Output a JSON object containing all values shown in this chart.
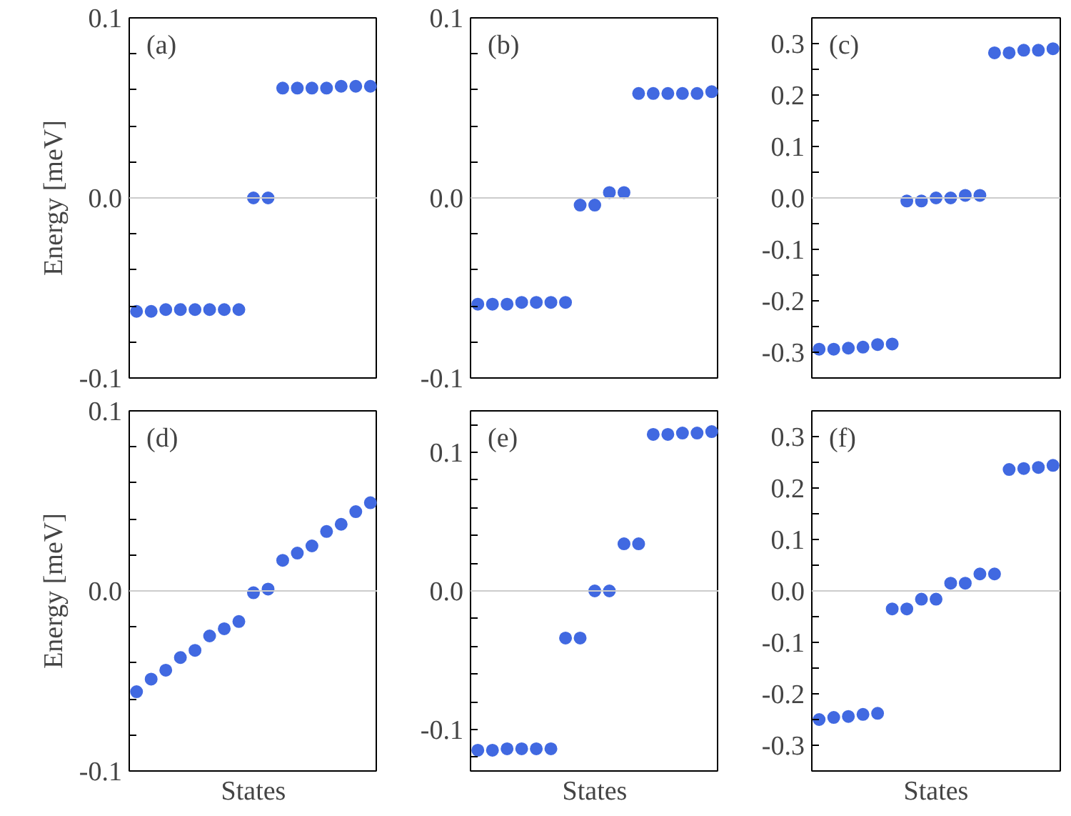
{
  "chart_data": [
    {
      "type": "scatter",
      "ylabel": "Energy [meV]",
      "annotations": [
        "(a)"
      ],
      "categories": [
        null,
        null,
        null,
        null,
        null,
        null,
        null,
        null,
        null,
        null,
        null,
        null,
        null,
        null,
        null,
        null,
        null
      ],
      "color": "#4169e1",
      "marker": "circle",
      "tick_labels": "y",
      "values": [
        -0.063,
        -0.063,
        -0.062,
        -0.062,
        -0.062,
        -0.062,
        -0.062,
        -0.062,
        0.0,
        0.0,
        0.061,
        0.061,
        0.061,
        0.061,
        0.062,
        0.062,
        0.062
      ],
      "ylim": [
        -0.1,
        0.1
      ],
      "yticks": [
        -0.1,
        {
          "value": -0.08,
          "label": null
        },
        {
          "value": -0.06,
          "label": null
        },
        {
          "value": -0.04,
          "label": null
        },
        {
          "value": -0.02,
          "label": null
        },
        {
          "value": 0,
          "label": "0.0"
        },
        {
          "value": 0.02,
          "label": null
        },
        {
          "value": 0.04,
          "label": null
        },
        {
          "value": 0.06,
          "label": null
        },
        {
          "value": 0.08,
          "label": null
        },
        0.1
      ],
      "ref_lines": [
        {
          "axis": "y",
          "value": 0,
          "color": "#cccccc"
        }
      ]
    },
    {
      "type": "scatter",
      "annotations": [
        "(b)"
      ],
      "categories": [
        null,
        null,
        null,
        null,
        null,
        null,
        null,
        null,
        null,
        null,
        null,
        null,
        null,
        null,
        null,
        null,
        null
      ],
      "color": "#4169e1",
      "marker": "circle",
      "tick_labels": "y",
      "values": [
        -0.059,
        -0.059,
        -0.059,
        -0.058,
        -0.058,
        -0.058,
        -0.058,
        -0.004,
        -0.004,
        0.003,
        0.003,
        0.058,
        0.058,
        0.058,
        0.058,
        0.058,
        0.059
      ],
      "ylim": [
        -0.1,
        0.1
      ],
      "yticks": [
        -0.1,
        {
          "value": -0.08,
          "label": null
        },
        {
          "value": -0.06,
          "label": null
        },
        {
          "value": -0.04,
          "label": null
        },
        {
          "value": -0.02,
          "label": null
        },
        {
          "value": 0,
          "label": "0.0"
        },
        {
          "value": 0.02,
          "label": null
        },
        {
          "value": 0.04,
          "label": null
        },
        {
          "value": 0.06,
          "label": null
        },
        {
          "value": 0.08,
          "label": null
        },
        0.1
      ],
      "ref_lines": [
        {
          "axis": "y",
          "value": 0,
          "color": "#cccccc"
        }
      ]
    },
    {
      "type": "scatter",
      "annotations": [
        "(c)"
      ],
      "categories": [
        null,
        null,
        null,
        null,
        null,
        null,
        null,
        null,
        null,
        null,
        null,
        null,
        null,
        null,
        null,
        null,
        null
      ],
      "color": "#4169e1",
      "marker": "circle",
      "tick_labels": "y",
      "values": [
        -0.294,
        -0.294,
        -0.292,
        -0.29,
        -0.285,
        -0.284,
        -0.006,
        -0.006,
        0.0,
        0.0,
        0.005,
        0.005,
        0.282,
        0.282,
        0.287,
        0.287,
        0.29
      ],
      "ylim": [
        -0.35,
        0.35
      ],
      "yticks": [
        -0.3,
        {
          "value": -0.25,
          "label": null
        },
        -0.2,
        {
          "value": -0.15,
          "label": null
        },
        -0.1,
        {
          "value": -0.05,
          "label": null
        },
        {
          "value": 0,
          "label": "0.0"
        },
        {
          "value": 0.05,
          "label": null
        },
        0.1,
        {
          "value": 0.15,
          "label": null
        },
        0.2,
        {
          "value": 0.25,
          "label": null
        },
        0.3
      ],
      "ref_lines": [
        {
          "axis": "y",
          "value": 0,
          "color": "#cccccc"
        }
      ]
    },
    {
      "type": "scatter",
      "ylabel": "Energy [meV]",
      "xlabel": "States",
      "annotations": [
        "(d)"
      ],
      "categories": [
        null,
        null,
        null,
        null,
        null,
        null,
        null,
        null,
        null,
        null,
        null,
        null,
        null,
        null,
        null,
        null,
        null
      ],
      "color": "#4169e1",
      "marker": "circle",
      "tick_labels": "y",
      "values": [
        -0.056,
        -0.049,
        -0.044,
        -0.037,
        -0.033,
        -0.025,
        -0.021,
        -0.017,
        -0.001,
        0.001,
        0.017,
        0.021,
        0.025,
        0.033,
        0.037,
        0.044,
        0.049
      ],
      "ylim": [
        -0.1,
        0.1
      ],
      "yticks": [
        -0.1,
        {
          "value": -0.08,
          "label": null
        },
        {
          "value": -0.06,
          "label": null
        },
        {
          "value": -0.04,
          "label": null
        },
        {
          "value": -0.02,
          "label": null
        },
        {
          "value": 0,
          "label": "0.0"
        },
        {
          "value": 0.02,
          "label": null
        },
        {
          "value": 0.04,
          "label": null
        },
        {
          "value": 0.06,
          "label": null
        },
        {
          "value": 0.08,
          "label": null
        },
        0.1
      ],
      "ref_lines": [
        {
          "axis": "y",
          "value": 0,
          "color": "#cccccc"
        }
      ]
    },
    {
      "type": "scatter",
      "xlabel": "States",
      "annotations": [
        "(e)"
      ],
      "categories": [
        null,
        null,
        null,
        null,
        null,
        null,
        null,
        null,
        null,
        null,
        null,
        null,
        null,
        null,
        null,
        null,
        null
      ],
      "color": "#4169e1",
      "marker": "circle",
      "tick_labels": "y",
      "values": [
        -0.115,
        -0.115,
        -0.114,
        -0.114,
        -0.114,
        -0.114,
        -0.034,
        -0.034,
        0.0,
        0.0,
        0.034,
        0.034,
        0.113,
        0.113,
        0.114,
        0.114,
        0.115
      ],
      "ylim": [
        -0.13,
        0.13
      ],
      "yticks": [
        {
          "value": -0.12,
          "label": null
        },
        -0.1,
        {
          "value": -0.08,
          "label": null
        },
        {
          "value": -0.06,
          "label": null
        },
        {
          "value": -0.04,
          "label": null
        },
        {
          "value": -0.02,
          "label": null
        },
        {
          "value": 0,
          "label": "0.0"
        },
        {
          "value": 0.02,
          "label": null
        },
        {
          "value": 0.04,
          "label": null
        },
        {
          "value": 0.06,
          "label": null
        },
        {
          "value": 0.08,
          "label": null
        },
        0.1,
        {
          "value": 0.12,
          "label": null
        }
      ],
      "ref_lines": [
        {
          "axis": "y",
          "value": 0,
          "color": "#cccccc"
        }
      ]
    },
    {
      "type": "scatter",
      "xlabel": "States",
      "annotations": [
        "(f)"
      ],
      "categories": [
        null,
        null,
        null,
        null,
        null,
        null,
        null,
        null,
        null,
        null,
        null,
        null,
        null,
        null,
        null,
        null,
        null
      ],
      "color": "#4169e1",
      "marker": "circle",
      "tick_labels": "y",
      "values": [
        -0.25,
        -0.246,
        -0.244,
        -0.24,
        -0.238,
        -0.035,
        -0.035,
        -0.016,
        -0.016,
        0.015,
        0.015,
        0.033,
        0.033,
        0.236,
        0.238,
        0.24,
        0.244
      ],
      "ylim": [
        -0.35,
        0.35
      ],
      "yticks": [
        -0.3,
        {
          "value": -0.25,
          "label": null
        },
        -0.2,
        {
          "value": -0.15,
          "label": null
        },
        -0.1,
        {
          "value": -0.05,
          "label": null
        },
        {
          "value": 0,
          "label": "0.0"
        },
        {
          "value": 0.05,
          "label": null
        },
        0.1,
        {
          "value": 0.15,
          "label": null
        },
        0.2,
        {
          "value": 0.25,
          "label": null
        },
        0.3
      ],
      "ref_lines": [
        {
          "axis": "y",
          "value": 0,
          "color": "#cccccc"
        }
      ]
    }
  ]
}
